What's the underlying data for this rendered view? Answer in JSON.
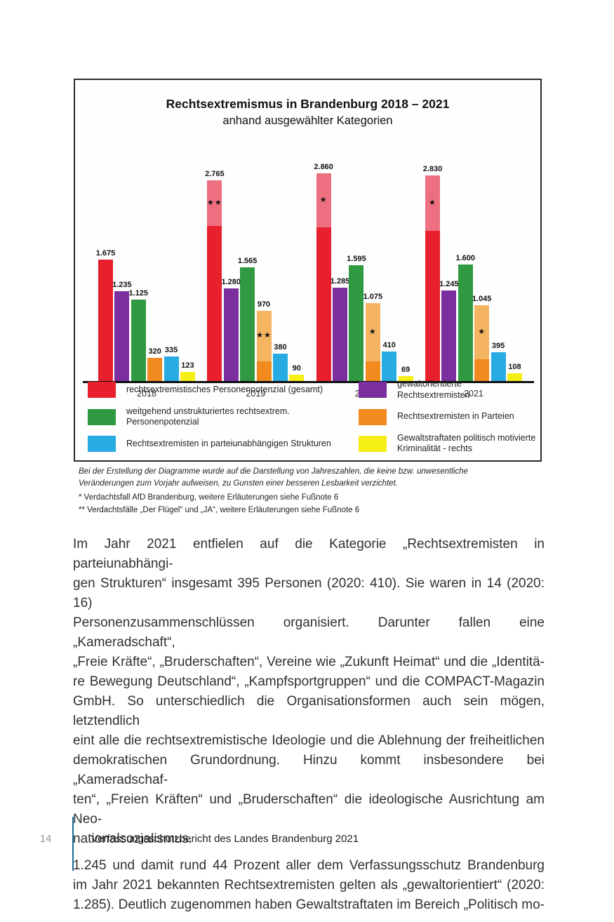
{
  "chart_data": {
    "type": "bar",
    "title": "Rechtsextremismus in Brandenburg 2018 – 2021",
    "subtitle": "anhand ausgewählter Kategorien",
    "categories": [
      "2018",
      "2019",
      "2020",
      "2021"
    ],
    "ylim": [
      0,
      2900
    ],
    "grid": false,
    "legend_position": "bottom",
    "series": [
      {
        "name": "rechtsextremistisches Personenpotenzial (gesamt)",
        "color": "#e8202d",
        "light_color": "#ee7080",
        "values": [
          1675,
          2765,
          2860,
          2830
        ],
        "labels": [
          "1.675",
          "2.765",
          "2.860",
          "2.830"
        ],
        "solid_values": [
          null,
          2135,
          2120,
          2070
        ],
        "notes": [
          null,
          "★★",
          "★",
          "★"
        ]
      },
      {
        "name": "gewaltorientierte Rechtsextremisten",
        "color": "#7b2e9d",
        "values": [
          1235,
          1280,
          1285,
          1245
        ],
        "labels": [
          "1.235",
          "1.280",
          "1.285",
          "1.245"
        ]
      },
      {
        "name": "weitgehend unstrukturiertes rechtsextrem. Personenpotenzial",
        "color": "#2f9a41",
        "values": [
          1125,
          1565,
          1595,
          1600
        ],
        "labels": [
          "1.125",
          "1.565",
          "1.595",
          "1.600"
        ]
      },
      {
        "name": "Rechtsextremisten in Parteien",
        "color": "#f28b1f",
        "light_color": "#f5b462",
        "values": [
          320,
          970,
          1075,
          1045
        ],
        "labels": [
          "320",
          "970",
          "1.075",
          "1.045"
        ],
        "solid_values": [
          null,
          270,
          270,
          300
        ],
        "notes": [
          null,
          "★★",
          "★",
          "★"
        ]
      },
      {
        "name": "Rechtsextremisten in parteiunabhängigen Strukturen",
        "color": "#28abe3",
        "values": [
          335,
          380,
          410,
          395
        ],
        "labels": [
          "335",
          "380",
          "410",
          "395"
        ]
      },
      {
        "name": "Gewaltstraftaten politisch motivierte Kriminalität - rechts",
        "color": "#f6ee17",
        "values": [
          123,
          90,
          69,
          108
        ],
        "labels": [
          "123",
          "90",
          "69",
          "108"
        ]
      }
    ]
  },
  "chart_notes": {
    "disclaimer": "Bei der Erstellung der Diagramme wurde auf die Darstellung von Jahreszahlen, die keine bzw. unwesentliche\nVeränderungen zum Vorjahr aufweisen, zu Gunsten einer besseren Lesbarkeit verzichtet.",
    "star_note_1": "* Verdachtsfall AfD Brandenburg, weitere Erläuterungen siehe Fußnote 6",
    "star_note_2": "** Verdachtsfälle „Der Flügel“ und „JA“, weitere Erläuterungen siehe Fußnote 6"
  },
  "body": {
    "paragraphs": [
      {
        "justify_last": false,
        "lines": [
          "Im Jahr 2021 entfielen auf die Kategorie „Rechtsextremisten in parteiunabhängi-",
          "gen Strukturen“ insgesamt 395 Personen (2020: 410). Sie waren in 14 (2020: 16)",
          "Personenzusammenschlüssen organisiert. Darunter fallen eine „Kameradschaft“,",
          "„Freie Kräfte“, „Bruderschaften“, Vereine wie „Zukunft Heimat“ und die „Identitä-",
          "re Bewegung Deutschland“, „Kampfsportgruppen“ und die COMPACT-Magazin",
          "GmbH. So unterschiedlich die Organisationsformen auch sein mögen, letztendlich",
          "eint alle die rechtsextremistische Ideologie und die Ablehnung der freiheitlichen",
          "demokratischen Grundordnung. Hinzu kommt insbesondere bei „Kameradschaf-",
          "ten“, „Freien Kräften“ und „Bruderschaften“ die ideologische Ausrichtung am Neo-",
          "nationalsozialismus."
        ]
      },
      {
        "justify_last": true,
        "lines": [
          "1.245 und damit rund 44 Prozent aller dem Verfassungsschutz Brandenburg",
          "im Jahr 2021 bekannten Rechtsextremisten gelten als „gewaltorientiert“ (2020:",
          "1.285). Deutlich zugenommen haben Gewaltstraftaten im Bereich „Politisch mo-"
        ]
      }
    ]
  },
  "footer": {
    "page_number": "14",
    "report_title": "Verfassungsschutzbericht des Landes Brandenburg 2021",
    "divider_color": "#1e6a96"
  }
}
